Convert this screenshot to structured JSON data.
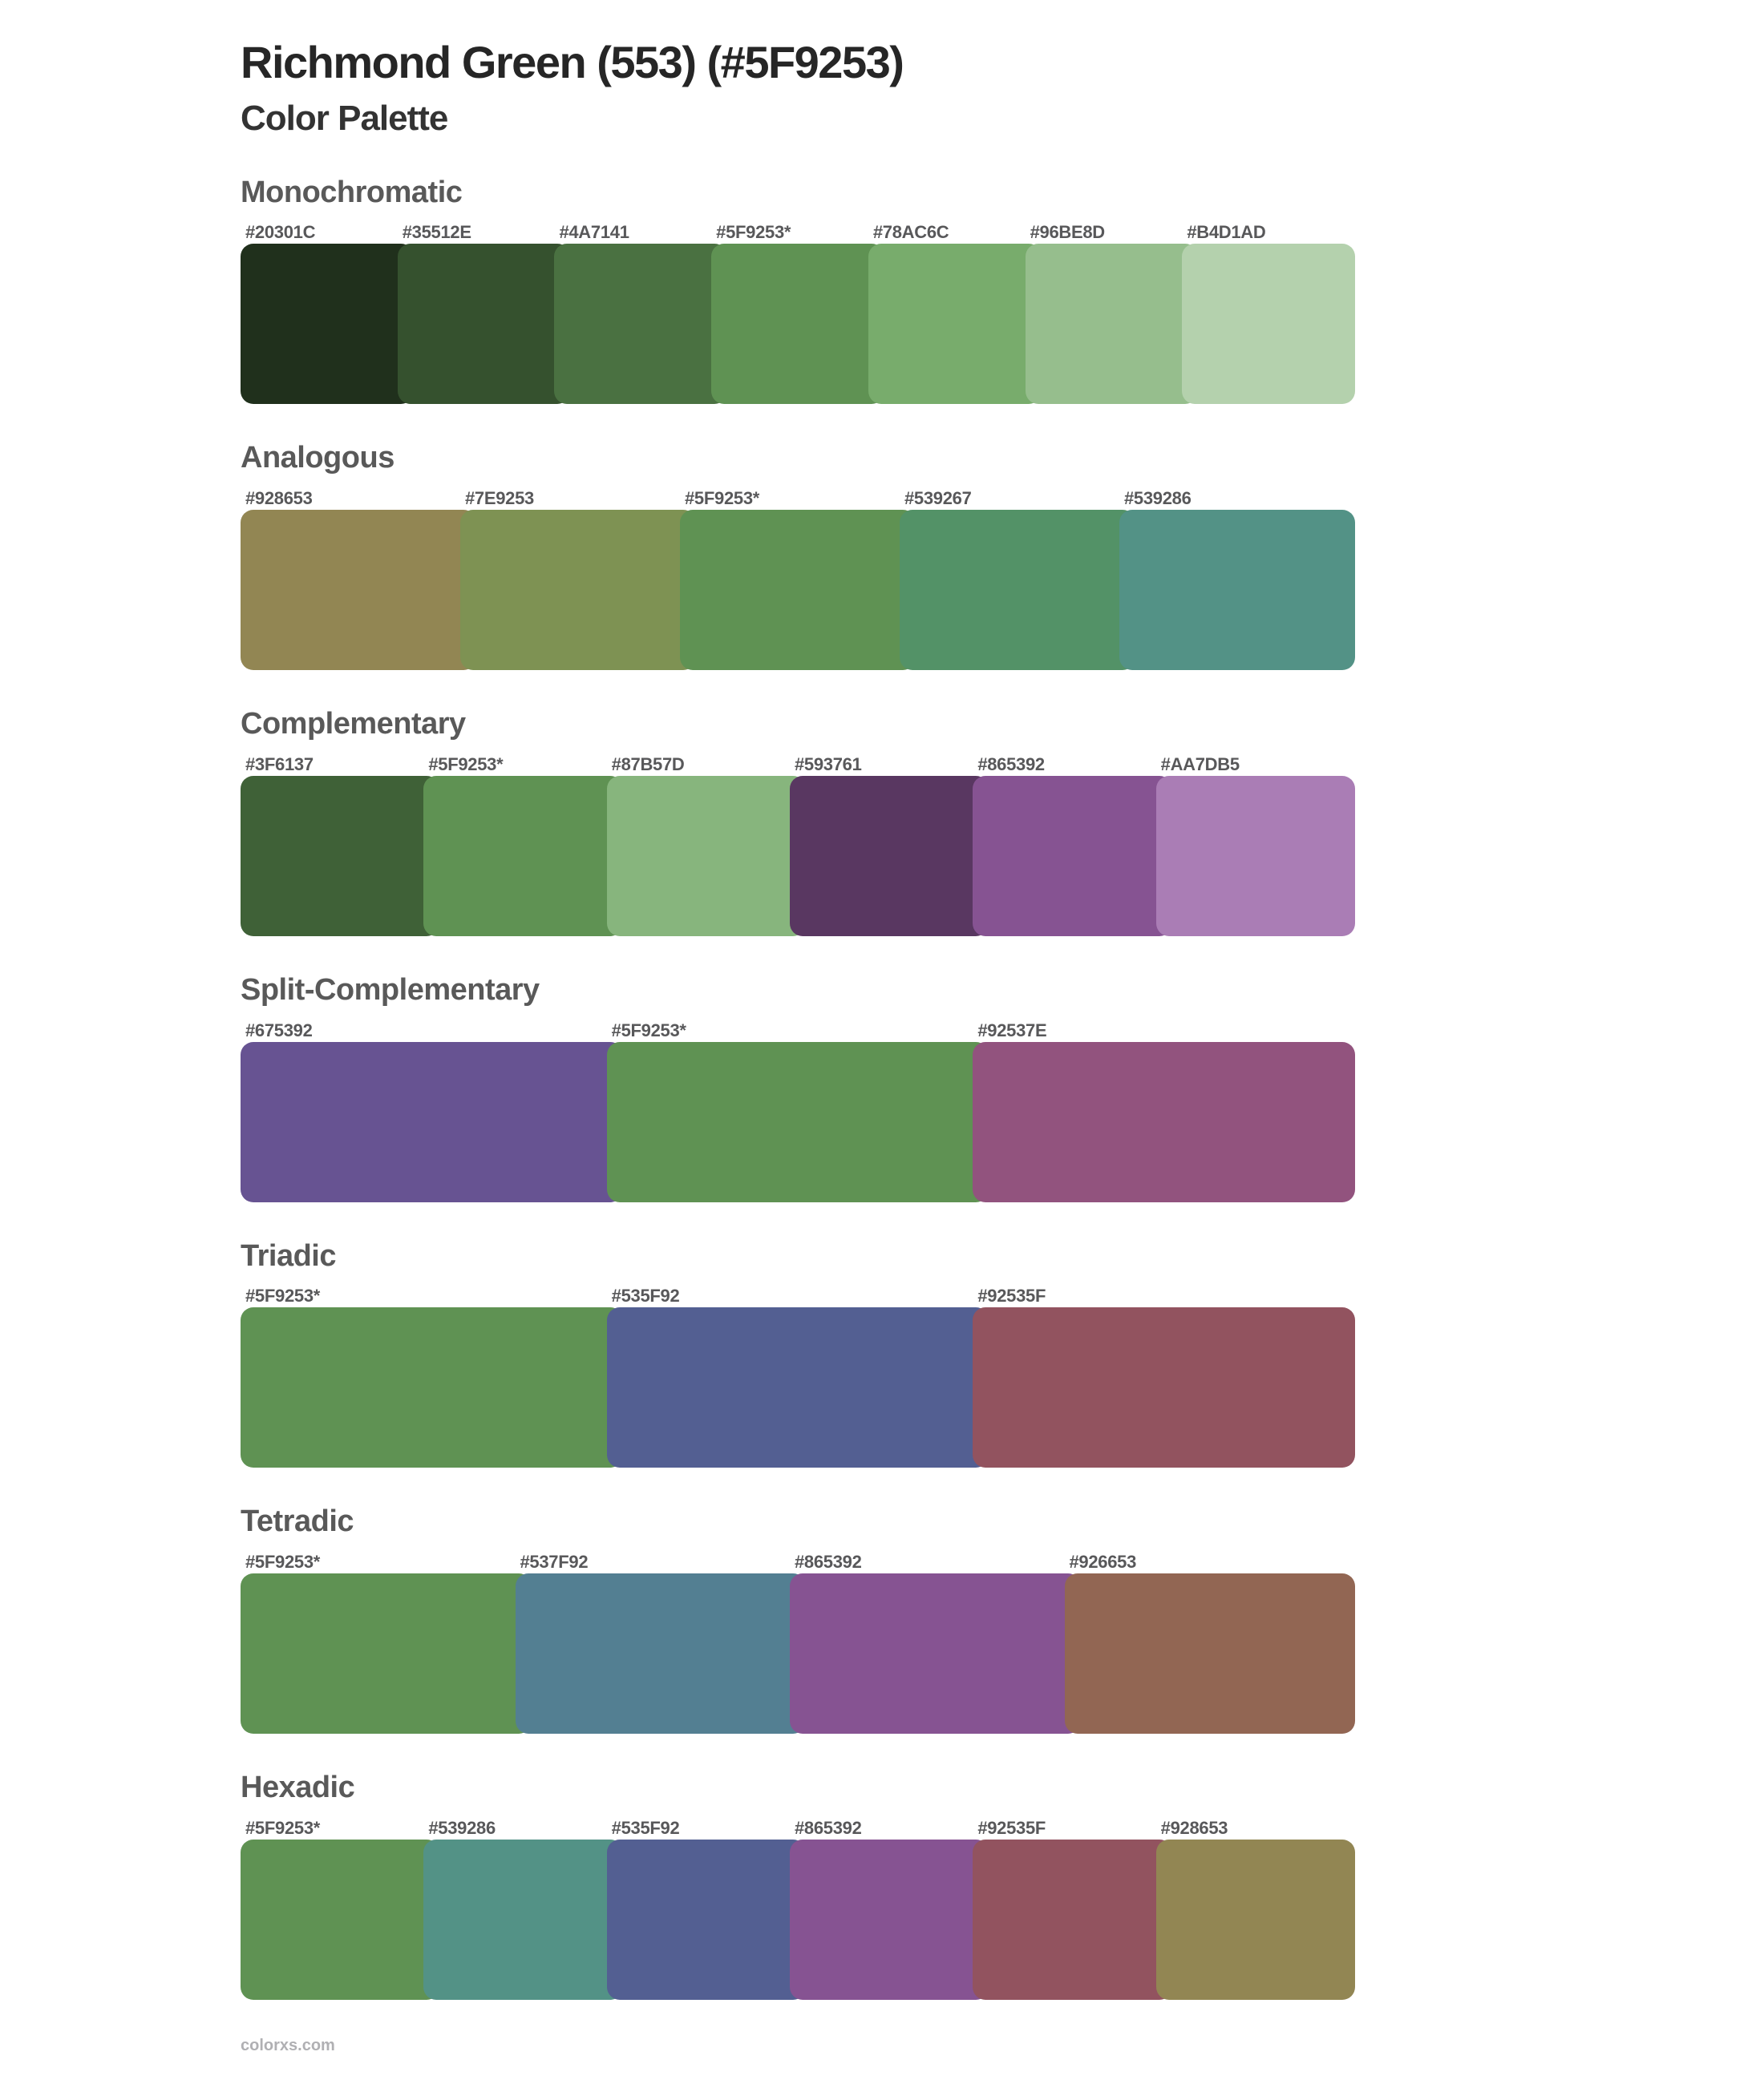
{
  "page": {
    "title": "Richmond Green (553) (#5F9253)",
    "subtitle": "Color Palette",
    "footer": "colorxs.com"
  },
  "base_color": {
    "name": "Richmond Green (553)",
    "hex": "#5F9253"
  },
  "palettes": [
    {
      "name": "Monochromatic",
      "colors": [
        {
          "label": "#20301C",
          "hex": "#20301C"
        },
        {
          "label": "#35512E",
          "hex": "#35512E"
        },
        {
          "label": "#4A7141",
          "hex": "#4A7141"
        },
        {
          "label": "#5F9253*",
          "hex": "#5F9253"
        },
        {
          "label": "#78AC6C",
          "hex": "#78AC6C"
        },
        {
          "label": "#96BE8D",
          "hex": "#96BE8D"
        },
        {
          "label": "#B4D1AD",
          "hex": "#B4D1AD"
        }
      ]
    },
    {
      "name": "Analogous",
      "colors": [
        {
          "label": "#928653",
          "hex": "#928653"
        },
        {
          "label": "#7E9253",
          "hex": "#7E9253"
        },
        {
          "label": "#5F9253*",
          "hex": "#5F9253"
        },
        {
          "label": "#539267",
          "hex": "#539267"
        },
        {
          "label": "#539286",
          "hex": "#539286"
        }
      ]
    },
    {
      "name": "Complementary",
      "colors": [
        {
          "label": "#3F6137",
          "hex": "#3F6137"
        },
        {
          "label": "#5F9253*",
          "hex": "#5F9253"
        },
        {
          "label": "#87B57D",
          "hex": "#87B57D"
        },
        {
          "label": "#593761",
          "hex": "#593761"
        },
        {
          "label": "#865392",
          "hex": "#865392"
        },
        {
          "label": "#AA7DB5",
          "hex": "#AA7DB5"
        }
      ]
    },
    {
      "name": "Split-Complementary",
      "colors": [
        {
          "label": "#675392",
          "hex": "#675392"
        },
        {
          "label": "#5F9253*",
          "hex": "#5F9253"
        },
        {
          "label": "#92537E",
          "hex": "#92537E"
        }
      ]
    },
    {
      "name": "Triadic",
      "colors": [
        {
          "label": "#5F9253*",
          "hex": "#5F9253"
        },
        {
          "label": "#535F92",
          "hex": "#535F92"
        },
        {
          "label": "#92535F",
          "hex": "#92535F"
        }
      ]
    },
    {
      "name": "Tetradic",
      "colors": [
        {
          "label": "#5F9253*",
          "hex": "#5F9253"
        },
        {
          "label": "#537F92",
          "hex": "#537F92"
        },
        {
          "label": "#865392",
          "hex": "#865392"
        },
        {
          "label": "#926653",
          "hex": "#926653"
        }
      ]
    },
    {
      "name": "Hexadic",
      "colors": [
        {
          "label": "#5F9253*",
          "hex": "#5F9253"
        },
        {
          "label": "#539286",
          "hex": "#539286"
        },
        {
          "label": "#535F92",
          "hex": "#535F92"
        },
        {
          "label": "#865392",
          "hex": "#865392"
        },
        {
          "label": "#92535F",
          "hex": "#92535F"
        },
        {
          "label": "#928653",
          "hex": "#928653"
        }
      ]
    }
  ]
}
